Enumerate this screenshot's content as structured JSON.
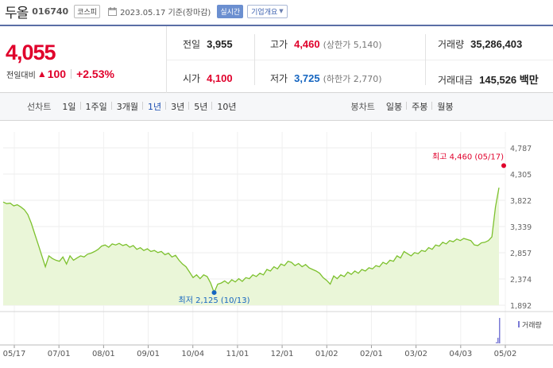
{
  "header": {
    "stock_name": "두올",
    "stock_code": "016740",
    "market": "코스피",
    "date": "2023.05.17 기준(장마감)",
    "realtime_label": "실시간",
    "company_info_label": "기업개요"
  },
  "quote": {
    "current_price": "4,055",
    "change_label": "전일대비",
    "change_amount": "100",
    "change_percent": "+2.53%",
    "prev_close_label": "전일",
    "prev_close": "3,955",
    "open_label": "시가",
    "open": "4,100",
    "high_label": "고가",
    "high": "4,460",
    "upper_limit": "(상한가 5,140)",
    "low_label": "저가",
    "low": "3,725",
    "lower_limit": "(하한가 2,770)",
    "volume_label": "거래량",
    "volume": "35,286,403",
    "amount_label": "거래대금",
    "amount": "145,526 백만"
  },
  "periods": {
    "line_label": "선차트",
    "items": [
      "1일",
      "1주일",
      "3개월",
      "1년",
      "3년",
      "5년",
      "10년"
    ],
    "active": "1년",
    "candle_label": "봉차트",
    "candle_items": [
      "일봉",
      "주봉",
      "월봉"
    ]
  },
  "colors": {
    "up": "#e0002b",
    "down": "#1565c0",
    "line": "#7dc12e",
    "fill": "#eaf6d8",
    "nav_border": "#5a6ea6"
  },
  "chart_data": {
    "type": "area",
    "y_ticks": [
      "4,787",
      "4,305",
      "3,822",
      "3,339",
      "2,857",
      "2,374",
      "1,892"
    ],
    "ylim": [
      1892,
      4787
    ],
    "x_ticks": [
      "05/17",
      "07/01",
      "08/01",
      "09/01",
      "10/04",
      "11/01",
      "12/01",
      "01/02",
      "02/01",
      "03/02",
      "04/03",
      "05/02"
    ],
    "max_label": "최고 4,460 (05/17)",
    "min_label": "최저 2,125 (10/13)",
    "max_value": 4460,
    "min_value": 2125,
    "volume_label": "거래량",
    "series": [
      {
        "values": [
          3790,
          3760,
          3770,
          3720,
          3740,
          3700,
          3650,
          3560,
          3400,
          3200,
          3000,
          2800,
          2600,
          2800,
          2750,
          2720,
          2700,
          2780,
          2650,
          2800,
          2720,
          2760,
          2800,
          2780,
          2830,
          2850,
          2880,
          2920,
          2980,
          3000,
          2960,
          3020,
          3000,
          3030,
          2990,
          3010,
          2960,
          2990,
          2920,
          2950,
          2900,
          2930,
          2880,
          2900,
          2860,
          2880,
          2820,
          2850,
          2780,
          2810,
          2720,
          2650,
          2600,
          2500,
          2400,
          2450,
          2380,
          2450,
          2420,
          2300,
          2125,
          2280,
          2300,
          2340,
          2290,
          2360,
          2320,
          2380,
          2330,
          2400,
          2380,
          2450,
          2420,
          2480,
          2450,
          2550,
          2520,
          2600,
          2560,
          2650,
          2620,
          2700,
          2680,
          2620,
          2660,
          2600,
          2640,
          2580,
          2550,
          2520,
          2480,
          2400,
          2350,
          2280,
          2430,
          2380,
          2450,
          2420,
          2500,
          2460,
          2520,
          2480,
          2550,
          2520,
          2580,
          2560,
          2620,
          2600,
          2680,
          2650,
          2720,
          2700,
          2800,
          2760,
          2880,
          2840,
          2800,
          2860,
          2840,
          2900,
          2880,
          2950,
          2920,
          3000,
          2980,
          3050,
          3020,
          3080,
          3060,
          3110,
          3080,
          3120,
          3100,
          3080,
          3000,
          2990,
          3040,
          3050,
          3080,
          3150,
          3700,
          4055
        ]
      }
    ],
    "volume_spike": [
      0,
      0.05,
      0.22,
      1.0
    ]
  }
}
